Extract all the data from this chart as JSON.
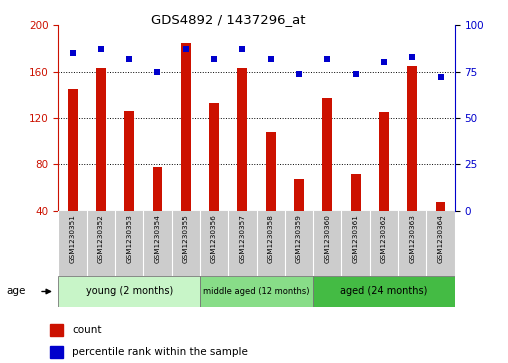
{
  "title": "GDS4892 / 1437296_at",
  "samples": [
    "GSM1230351",
    "GSM1230352",
    "GSM1230353",
    "GSM1230354",
    "GSM1230355",
    "GSM1230356",
    "GSM1230357",
    "GSM1230358",
    "GSM1230359",
    "GSM1230360",
    "GSM1230361",
    "GSM1230362",
    "GSM1230363",
    "GSM1230364"
  ],
  "counts": [
    145,
    163,
    126,
    78,
    185,
    133,
    163,
    108,
    67,
    137,
    72,
    125,
    165,
    47
  ],
  "percentiles": [
    85,
    87,
    82,
    75,
    87,
    82,
    87,
    82,
    74,
    82,
    74,
    80,
    83,
    72
  ],
  "ylim_left": [
    40,
    200
  ],
  "ylim_right": [
    0,
    100
  ],
  "yticks_left": [
    40,
    80,
    120,
    160,
    200
  ],
  "yticks_right": [
    0,
    25,
    50,
    75,
    100
  ],
  "groups": [
    {
      "label": "young (2 months)",
      "start": 0,
      "end": 5
    },
    {
      "label": "middle aged (12 months)",
      "start": 5,
      "end": 9
    },
    {
      "label": "aged (24 months)",
      "start": 9,
      "end": 14
    }
  ],
  "group_colors": [
    "#c8f5c8",
    "#88dd88",
    "#44bb44"
  ],
  "bar_color": "#cc1100",
  "dot_color": "#0000cc",
  "sample_bg": "#cccccc",
  "left_axis_color": "#cc1100",
  "right_axis_color": "#0000cc",
  "legend_count_label": "count",
  "legend_pct_label": "percentile rank within the sample",
  "age_label": "age"
}
